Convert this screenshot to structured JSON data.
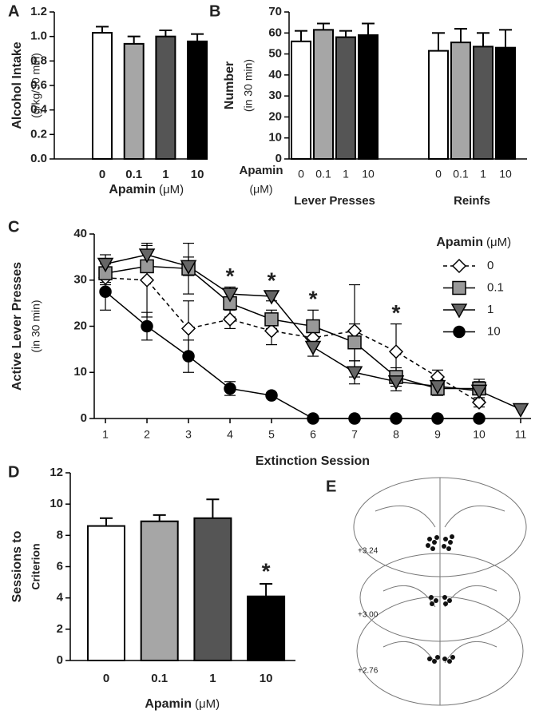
{
  "chart_data": [
    {
      "type": "bar",
      "panel_label": "A",
      "ylabel": "Alcohol Intake",
      "ylabel_unit": "(g/kg/30 min)",
      "xlabel": "Apamin",
      "xlabel_unit": "(μM)",
      "categories": [
        "0",
        "0.1",
        "1",
        "10"
      ],
      "values": [
        1.03,
        0.94,
        1.0,
        0.96
      ],
      "errors": [
        0.05,
        0.06,
        0.05,
        0.06
      ],
      "colors": [
        "#ffffff",
        "#a6a6a6",
        "#555555",
        "#000000"
      ],
      "ylim": [
        0,
        1.2
      ],
      "yticks": [
        {
          "value": 0,
          "label": "0.0"
        },
        0.2,
        0.4,
        0.6,
        0.8,
        {
          "value": 1,
          "label": "1.0"
        },
        1.2
      ]
    },
    {
      "type": "grouped_bar",
      "panel_label": "B",
      "ylabel": "Number",
      "ylabel_unit": "(in 30 min)",
      "xlabel": "Apamin",
      "xlabel_unit": "(μM)",
      "categories": [
        "Lever Presses",
        "Reinfs"
      ],
      "series": [
        {
          "name": "0",
          "color": "#ffffff",
          "values": [
            56,
            51.5
          ],
          "errors": [
            5,
            8.5
          ]
        },
        {
          "name": "0.1",
          "color": "#a6a6a6",
          "values": [
            61.5,
            55.5
          ],
          "errors": [
            3,
            6.5
          ]
        },
        {
          "name": "1",
          "color": "#555555",
          "values": [
            58,
            53.5
          ],
          "errors": [
            3,
            6.5
          ]
        },
        {
          "name": "10",
          "color": "#000000",
          "values": [
            59,
            53
          ],
          "errors": [
            5.5,
            8.5
          ]
        }
      ],
      "ylim": [
        0,
        70
      ],
      "yticks": [
        0,
        10,
        20,
        30,
        40,
        50,
        60,
        70
      ]
    },
    {
      "type": "line",
      "panel_label": "C",
      "ylabel": "Active Lever Presses",
      "ylabel_unit": "(in 30 min)",
      "xlabel": "Extinction Session",
      "legend_title": "Apamin",
      "legend_unit": "(μM)",
      "x": [
        1,
        2,
        3,
        4,
        5,
        6,
        7,
        8,
        9,
        10,
        11
      ],
      "xlim": [
        0.73,
        11.25
      ],
      "xticks": [
        1,
        2,
        3,
        4,
        5,
        6,
        7,
        8,
        9,
        10,
        11
      ],
      "ylim": [
        0,
        40
      ],
      "yticks": [
        0,
        10,
        20,
        30,
        40
      ],
      "series": [
        {
          "name": "0",
          "color": "#ffffff",
          "marker": "diamond",
          "line_style": "dashed",
          "values": [
            30.5,
            30,
            19.5,
            21.5,
            19,
            17.5,
            19,
            14.5,
            9,
            3.5,
            null
          ],
          "errors": [
            1.5,
            8,
            6,
            2,
            3,
            1.5,
            10,
            6,
            1.5,
            1,
            null
          ]
        },
        {
          "name": "0.1",
          "color": "#999999",
          "marker": "square",
          "line_style": "solid",
          "values": [
            31.5,
            33,
            32.5,
            25,
            21.5,
            20,
            16.5,
            9,
            6.5,
            6.5,
            null
          ],
          "errors": [
            2,
            3,
            5.5,
            3,
            2,
            3.5,
            4,
            2,
            1.5,
            2,
            null
          ]
        },
        {
          "name": "1",
          "color": "#666666",
          "marker": "triangle",
          "line_style": "solid",
          "values": [
            33.5,
            35.5,
            33,
            27,
            26.5,
            15.5,
            10,
            8,
            7,
            6,
            2
          ],
          "errors": [
            2,
            2,
            2,
            1.5,
            1,
            2,
            2.5,
            2,
            1.5,
            2,
            0
          ]
        },
        {
          "name": "10",
          "color": "#000000",
          "marker": "circle",
          "line_style": "solid",
          "values": [
            27.5,
            20,
            13.5,
            6.5,
            5,
            0,
            0,
            0,
            0,
            0,
            null
          ],
          "errors": [
            4,
            3,
            3.5,
            1.5,
            0.5,
            0,
            0,
            0,
            0,
            0,
            null
          ]
        }
      ],
      "annotations": [
        {
          "text": "*",
          "x": 4
        },
        {
          "text": "*",
          "x": 5
        },
        {
          "text": "*",
          "x": 6
        },
        {
          "text": "*",
          "x": 8
        }
      ]
    },
    {
      "type": "bar",
      "panel_label": "D",
      "ylabel": "Sessions to",
      "ylabel_unit": "Criterion",
      "xlabel": "Apamin",
      "xlabel_unit": "(μM)",
      "categories": [
        "0",
        "0.1",
        "1",
        "10"
      ],
      "values": [
        8.6,
        8.9,
        9.1,
        4.1
      ],
      "errors": [
        0.5,
        0.4,
        1.2,
        0.8
      ],
      "colors": [
        "#ffffff",
        "#a6a6a6",
        "#555555",
        "#000000"
      ],
      "ylim": [
        0,
        12
      ],
      "yticks": [
        0,
        2,
        4,
        6,
        8,
        10,
        12
      ],
      "annotations": [
        {
          "text": "*",
          "category": "10"
        }
      ]
    }
  ],
  "atlas": {
    "panel_label": "E",
    "levels": [
      "+3.24",
      "+3.00",
      "+2.76"
    ]
  }
}
